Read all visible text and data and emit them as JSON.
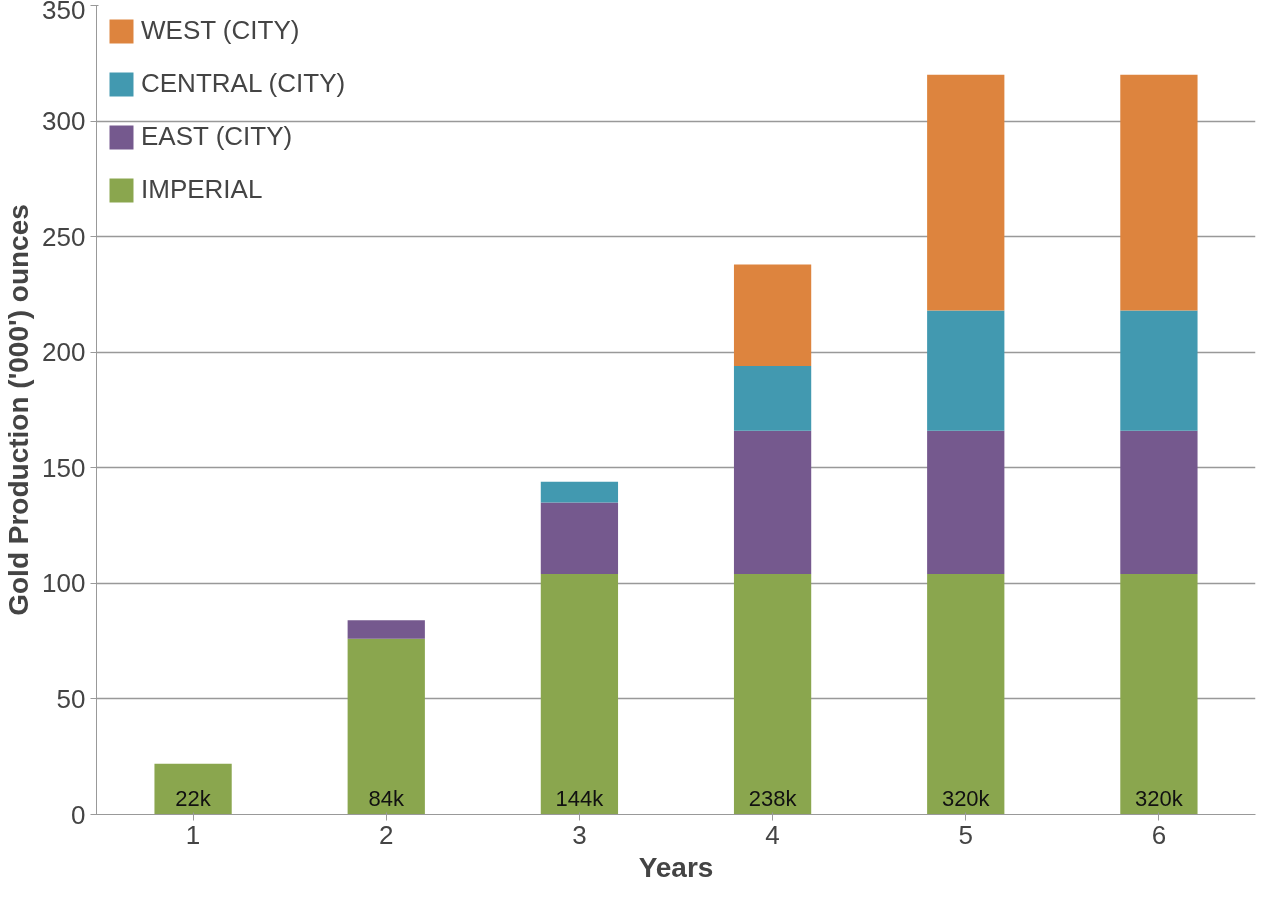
{
  "chart_data": {
    "type": "bar",
    "stacked": true,
    "xlabel": "Years",
    "ylabel": "Gold Production ('000') ounces",
    "categories": [
      "1",
      "2",
      "3",
      "4",
      "5",
      "6"
    ],
    "series": [
      {
        "name": "IMPERIAL",
        "color": "#8aa64e",
        "values": [
          22,
          76,
          104,
          104,
          104,
          104
        ]
      },
      {
        "name": "EAST (CITY)",
        "color": "#75598e",
        "values": [
          null,
          8,
          31,
          62,
          62,
          62
        ]
      },
      {
        "name": "CENTRAL (CITY)",
        "color": "#4299b0",
        "values": [
          null,
          null,
          9,
          28,
          52,
          52
        ]
      },
      {
        "name": "WEST (CITY)",
        "color": "#dd843e",
        "values": [
          null,
          null,
          null,
          44,
          102,
          102
        ]
      }
    ],
    "totals": [
      "22k",
      "84k",
      "144k",
      "238k",
      "320k",
      "320k"
    ],
    "ylim": [
      0,
      350
    ],
    "yticks": [
      0,
      50,
      100,
      150,
      200,
      250,
      300,
      350
    ],
    "grid": "y",
    "legend": "top left"
  }
}
